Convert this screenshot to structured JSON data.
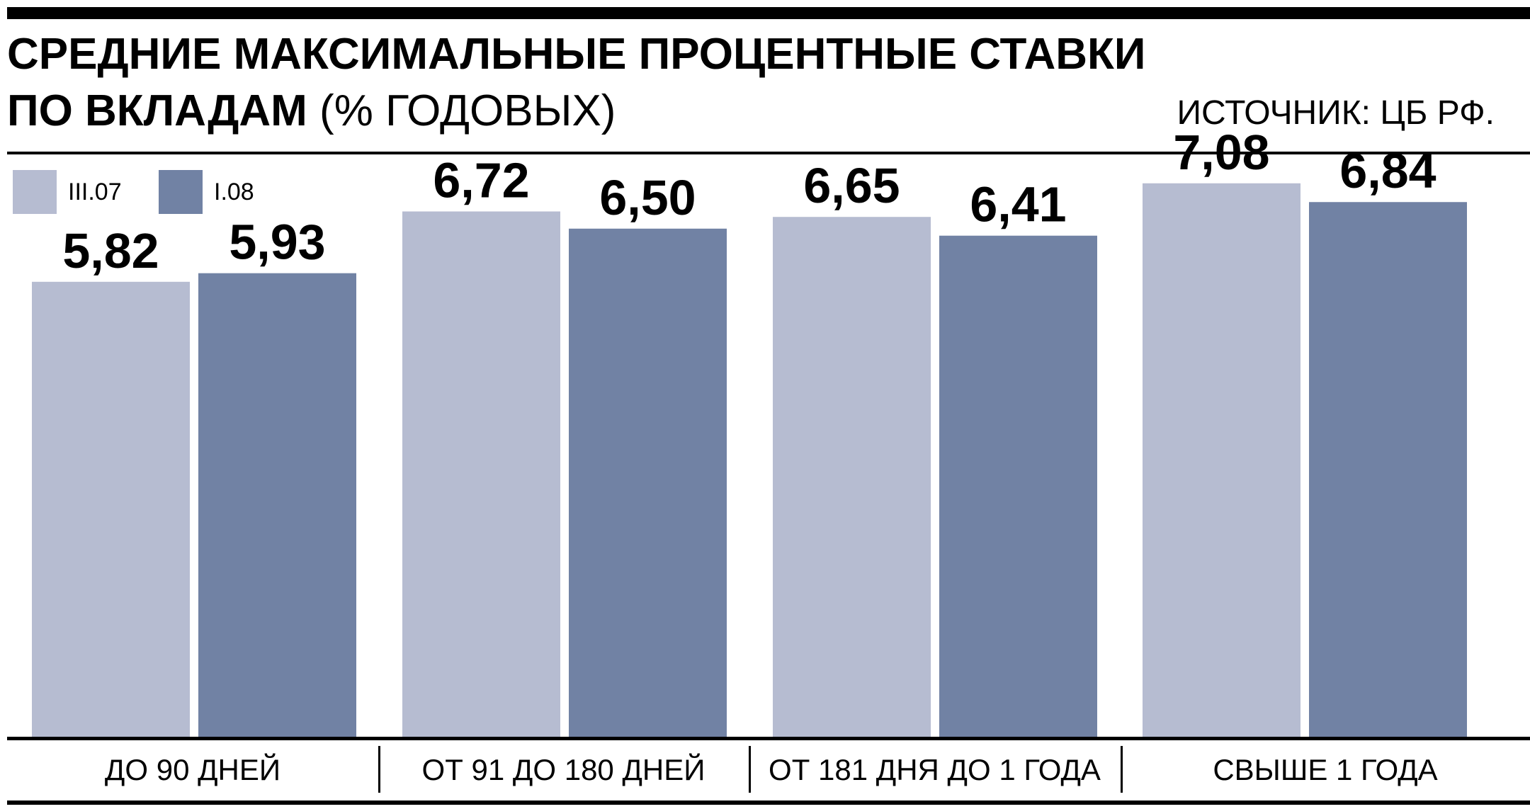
{
  "header": {
    "title_line1": "СРЕДНИЕ МАКСИМАЛЬНЫЕ ПРОЦЕНТНЫЕ СТАВКИ",
    "title_line2_bold": "ПО ВКЛАДАМ",
    "title_line2_regular": "(% ГОДОВЫХ)",
    "source": "ИСТОЧНИК: ЦБ РФ."
  },
  "colors": {
    "series_light": "#b6bcd1",
    "series_dark": "#7182a4"
  },
  "chart_data": {
    "type": "bar",
    "title": "СРЕДНИЕ МАКСИМАЛЬНЫЕ ПРОЦЕНТНЫЕ СТАВКИ ПО ВКЛАДАМ (% ГОДОВЫХ)",
    "categories": [
      "ДО 90 ДНЕЙ",
      "ОТ 91 ДО 180 ДНЕЙ",
      "ОТ 181 ДНЯ ДО 1 ГОДА",
      "СВЫШЕ 1 ГОДА"
    ],
    "series": [
      {
        "name": "III.07",
        "values": [
          5.82,
          6.72,
          6.65,
          7.08
        ],
        "labels": [
          "5,82",
          "6,72",
          "6,65",
          "7,08"
        ]
      },
      {
        "name": "I.08",
        "values": [
          5.93,
          6.5,
          6.41,
          6.84
        ],
        "labels": [
          "5,93",
          "6,50",
          "6,41",
          "6,84"
        ]
      }
    ],
    "ylim": [
      0,
      8.7
    ],
    "grid": false,
    "legend": "top-left",
    "data_labels": true
  }
}
